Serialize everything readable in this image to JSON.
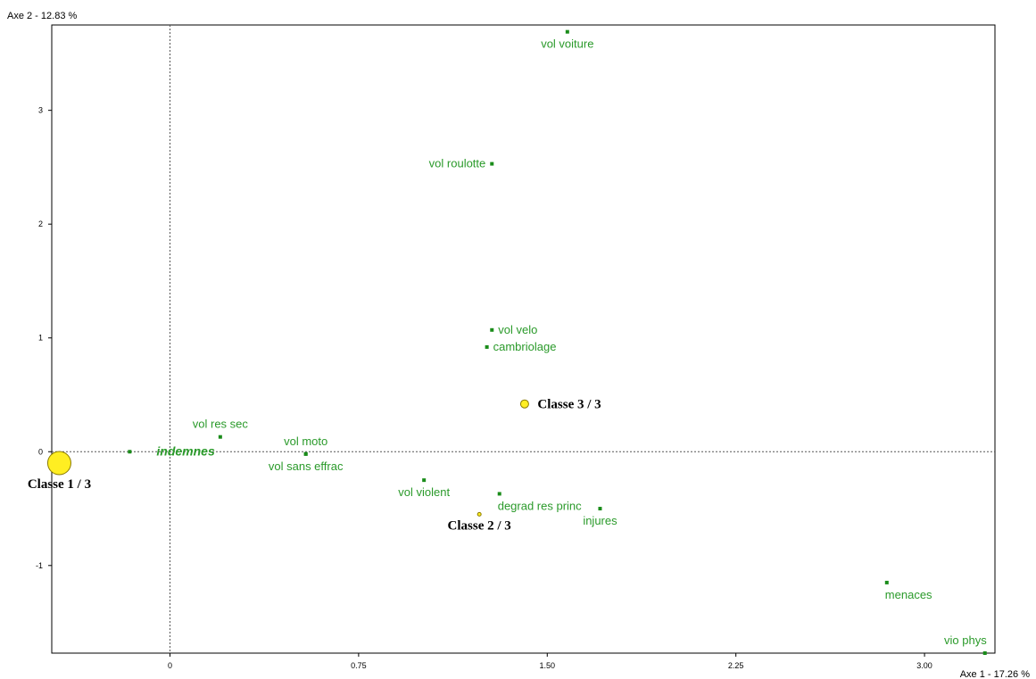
{
  "colors": {
    "points": "#1a8c1a",
    "point_labels": "#2a9a2a",
    "class_fill": "#ffee22",
    "class_stroke": "#8a7a00",
    "axes": "#000000",
    "reference_lines": "#555555"
  },
  "chart_data": {
    "type": "scatter",
    "title": "",
    "xlabel": "Axe 1  -  17.26 %",
    "ylabel": "Axe 2  -  12.83 %",
    "xlim": [
      -0.47,
      3.28
    ],
    "ylim": [
      -1.77,
      3.75
    ],
    "xticks": [
      0,
      0.75,
      1.5,
      2.25,
      3.0
    ],
    "xtick_labels": [
      "0",
      "0.75",
      "1.50",
      "2.25",
      "3.00"
    ],
    "yticks": [
      -1,
      0,
      1,
      2,
      3
    ],
    "ytick_labels": [
      "-1",
      "0",
      "1",
      "2",
      "3"
    ],
    "reference_lines": {
      "x": 0,
      "y": 0,
      "style": "dotted"
    },
    "grid": false,
    "legend": "none",
    "points": [
      {
        "label": "vol voiture",
        "x": 1.58,
        "y": 3.69,
        "label_pos": "below"
      },
      {
        "label": "vol roulotte",
        "x": 1.28,
        "y": 2.53,
        "label_pos": "left"
      },
      {
        "label": "vol velo",
        "x": 1.28,
        "y": 1.07,
        "label_pos": "right"
      },
      {
        "label": "cambriolage",
        "x": 1.26,
        "y": 0.92,
        "label_pos": "right"
      },
      {
        "label": "vol res sec",
        "x": 0.2,
        "y": 0.13,
        "label_pos": "above"
      },
      {
        "label": "vol moto",
        "x": 0.54,
        "y": -0.02,
        "label_pos": "above"
      },
      {
        "label": "vol sans effrac",
        "x": 0.54,
        "y": -0.02,
        "label_pos": "below"
      },
      {
        "label": "indemnes",
        "x": -0.16,
        "y": 0.0,
        "label_pos": "right",
        "emphasis": true
      },
      {
        "label": "vol violent",
        "x": 1.01,
        "y": -0.25,
        "label_pos": "below"
      },
      {
        "label": "degrad res princ",
        "x": 1.31,
        "y": -0.37,
        "label_pos": "below-right"
      },
      {
        "label": "injures",
        "x": 1.71,
        "y": -0.5,
        "label_pos": "below"
      },
      {
        "label": "menaces",
        "x": 2.85,
        "y": -1.15,
        "label_pos": "below-right"
      },
      {
        "label": "vio phys",
        "x": 3.24,
        "y": -1.77,
        "label_pos": "above-left"
      }
    ],
    "classes": [
      {
        "label": "Classe  1  /  3",
        "x": -0.44,
        "y": -0.1,
        "size": "large",
        "label_pos": "below"
      },
      {
        "label": "Classe  2  /  3",
        "x": 1.23,
        "y": -0.55,
        "size": "tiny",
        "label_pos": "below"
      },
      {
        "label": "Classe  3  /  3",
        "x": 1.41,
        "y": 0.42,
        "size": "small",
        "label_pos": "right"
      }
    ]
  }
}
